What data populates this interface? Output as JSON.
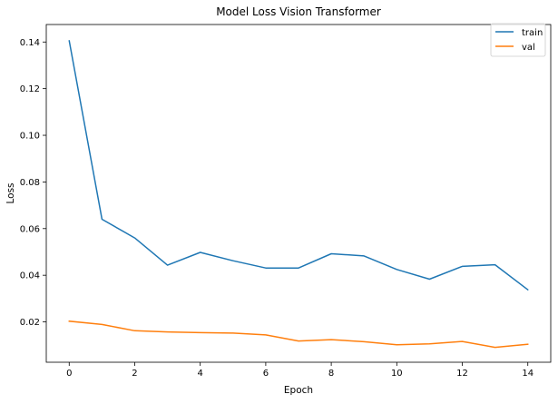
{
  "chart_data": {
    "type": "line",
    "title": "Model Loss Vision Transformer",
    "xlabel": "Epoch",
    "ylabel": "Loss",
    "x": [
      0,
      1,
      2,
      3,
      4,
      5,
      6,
      7,
      8,
      9,
      10,
      11,
      12,
      13,
      14
    ],
    "xlim": [
      -0.7,
      14.7
    ],
    "ylim": [
      0.0027,
      0.1475
    ],
    "xticks": [
      0,
      2,
      4,
      6,
      8,
      10,
      12,
      14
    ],
    "yticks": [
      0.02,
      0.04,
      0.06,
      0.08,
      0.1,
      0.12,
      0.14
    ],
    "xtick_labels": [
      "0",
      "2",
      "4",
      "6",
      "8",
      "10",
      "12",
      "14"
    ],
    "ytick_labels": [
      "0.02",
      "0.04",
      "0.06",
      "0.08",
      "0.10",
      "0.12",
      "0.14"
    ],
    "grid": false,
    "legend_position": "top-right",
    "series": [
      {
        "name": "train",
        "color": "#1f77b4",
        "values": [
          0.1405,
          0.064,
          0.056,
          0.0443,
          0.0498,
          0.0462,
          0.0431,
          0.0431,
          0.0492,
          0.0483,
          0.0425,
          0.0383,
          0.0438,
          0.0445,
          0.0338
        ]
      },
      {
        "name": "val",
        "color": "#ff7f0e",
        "values": [
          0.0203,
          0.0189,
          0.0162,
          0.0157,
          0.0154,
          0.0152,
          0.0144,
          0.0118,
          0.0124,
          0.0115,
          0.0102,
          0.0106,
          0.0116,
          0.0091,
          0.0104
        ]
      }
    ]
  }
}
